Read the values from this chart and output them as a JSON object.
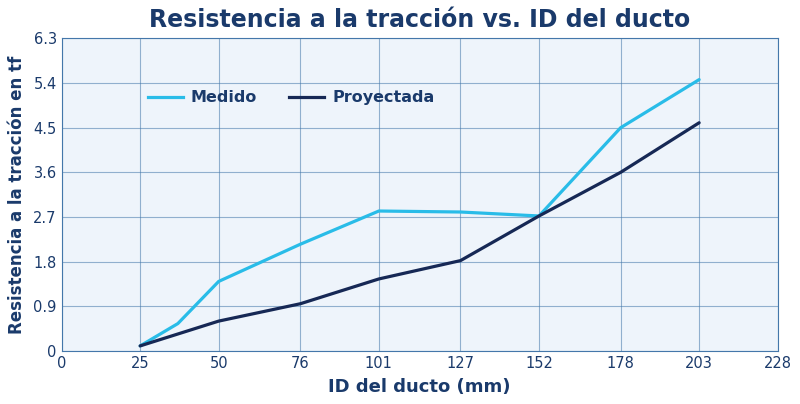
{
  "title": "Resistencia a la tracción vs. ID del ducto",
  "xlabel": "ID del ducto (mm)",
  "ylabel": "Resistencia a la tracción en tf",
  "background_color": "#ffffff",
  "plot_bg_color": "#eef4fb",
  "grid_color": "#4477aa",
  "xticks": [
    0,
    25,
    50,
    76,
    101,
    127,
    152,
    178,
    203,
    228
  ],
  "yticks": [
    0,
    0.9,
    1.8,
    2.7,
    3.6,
    4.5,
    5.4,
    6.3
  ],
  "xlim": [
    0,
    228
  ],
  "ylim": [
    0,
    6.3
  ],
  "medido_x": [
    25,
    37,
    50,
    76,
    101,
    127,
    152,
    178,
    203
  ],
  "medido_y": [
    0.1,
    0.55,
    1.4,
    2.15,
    2.82,
    2.8,
    2.72,
    4.5,
    5.47
  ],
  "proyectada_x": [
    25,
    50,
    76,
    101,
    127,
    152,
    178,
    203
  ],
  "proyectada_y": [
    0.1,
    0.6,
    0.95,
    1.45,
    1.82,
    2.72,
    3.6,
    4.6
  ],
  "medido_color": "#29bce8",
  "proyectada_color": "#162855",
  "medido_label": "Medido",
  "proyectada_label": "Proyectada",
  "title_color": "#1a3a6b",
  "axis_label_color": "#1a3a6b",
  "tick_color": "#1a3a6b",
  "title_fontsize": 17,
  "axis_label_fontsize": 13,
  "tick_fontsize": 10.5,
  "legend_fontsize": 11.5,
  "line_width": 2.3
}
